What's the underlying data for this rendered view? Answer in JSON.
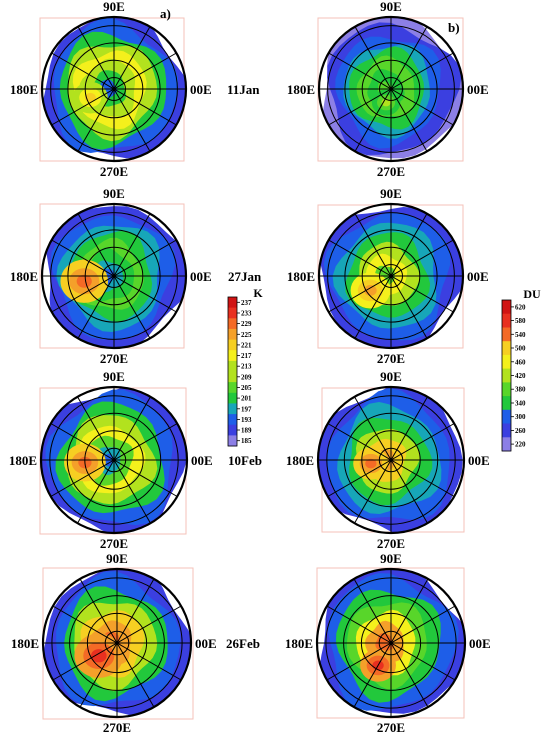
{
  "chart_data": {
    "type": "polar-contour-map",
    "panel_labels": [
      "a)",
      "b)"
    ],
    "dates": [
      "11Jan",
      "27Jan",
      "10Feb",
      "26Feb"
    ],
    "longitude_labels": {
      "top": "90E",
      "left": "180E",
      "right": "00E",
      "bottom": "270E"
    },
    "colorbars": [
      {
        "unit": "K",
        "ticks": [
          "237",
          "233",
          "229",
          "225",
          "221",
          "217",
          "213",
          "209",
          "205",
          "201",
          "197",
          "193",
          "189",
          "185"
        ],
        "range": [
          185,
          237
        ]
      },
      {
        "unit": "DU",
        "ticks": [
          "620",
          "580",
          "540",
          "500",
          "460",
          "420",
          "380",
          "340",
          "300",
          "260",
          "220"
        ],
        "range": [
          220,
          620
        ]
      }
    ],
    "colors": {
      "scale": [
        "#8c7fe6",
        "#3b3fe0",
        "#1e5ee8",
        "#17a6b8",
        "#22c83c",
        "#58d62a",
        "#b2e21e",
        "#f4f01c",
        "#f6cf22",
        "#f4a02a",
        "#f46a26",
        "#e83020",
        "#d01414"
      ],
      "frame": "#f4c2b8"
    }
  }
}
